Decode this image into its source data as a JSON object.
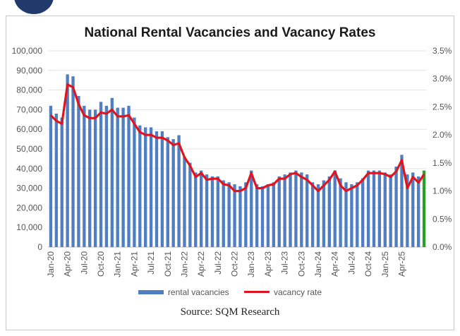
{
  "chart_data": {
    "type": "bar",
    "title": "National Rental Vacancies and Vacancy Rates",
    "source": "Source: SQM Research",
    "y_left": {
      "lim": [
        0,
        100000
      ],
      "ticks": [
        "0",
        "10,000",
        "20,000",
        "30,000",
        "40,000",
        "50,000",
        "60,000",
        "70,000",
        "80,000",
        "90,000",
        "100,000"
      ]
    },
    "y_right": {
      "lim": [
        0,
        3.5
      ],
      "ticks": [
        "0.0%",
        "0.5%",
        "1.0%",
        "1.5%",
        "2.0%",
        "2.5%",
        "3.0%",
        "3.5%"
      ]
    },
    "x_tick_labels": [
      "Jan-20",
      "Apr-20",
      "Jul-20",
      "Oct-20",
      "Jan-21",
      "Apr-21",
      "Jul-21",
      "Oct-21",
      "Jan-22",
      "Apr-22",
      "Jul-22",
      "Oct-22",
      "Jan-23",
      "Apr-23",
      "Jul-23",
      "Oct-23",
      "Jan-24",
      "Apr-24",
      "Jul-24",
      "Oct-24",
      "Jan-25",
      "Apr-25"
    ],
    "legend": [
      "rental vacancies",
      "vacancy rate"
    ],
    "grid": true,
    "colors": {
      "bars": "#4f7fc2",
      "line": "#e0141e",
      "last_bar": "#2aa02a"
    },
    "series": [
      {
        "name": "rental vacancies",
        "axis": "left",
        "values": [
          72000,
          68000,
          66000,
          88000,
          87000,
          77000,
          72000,
          70000,
          70000,
          74000,
          72000,
          76000,
          71000,
          71000,
          72000,
          66000,
          62000,
          61000,
          61000,
          59000,
          59000,
          56000,
          55000,
          57000,
          46000,
          43000,
          38000,
          39000,
          37000,
          36000,
          36000,
          34000,
          33000,
          32000,
          31000,
          33000,
          39000,
          32000,
          31000,
          32000,
          33000,
          36000,
          37000,
          38000,
          39000,
          38000,
          37000,
          33000,
          32000,
          34000,
          36000,
          39000,
          35000,
          33000,
          32000,
          33000,
          35000,
          39000,
          39000,
          39000,
          38000,
          37000,
          41000,
          47000,
          37000,
          38000,
          36000,
          39000
        ]
      },
      {
        "name": "vacancy rate",
        "axis": "right",
        "values": [
          2.35,
          2.25,
          2.2,
          2.9,
          2.85,
          2.55,
          2.35,
          2.3,
          2.3,
          2.4,
          2.38,
          2.45,
          2.33,
          2.33,
          2.35,
          2.2,
          2.05,
          2.0,
          2.0,
          1.95,
          1.95,
          1.9,
          1.82,
          1.85,
          1.6,
          1.45,
          1.25,
          1.32,
          1.2,
          1.22,
          1.22,
          1.12,
          1.1,
          1.0,
          1.0,
          1.05,
          1.32,
          1.05,
          1.05,
          1.1,
          1.12,
          1.22,
          1.22,
          1.3,
          1.32,
          1.25,
          1.2,
          1.1,
          1.0,
          1.1,
          1.2,
          1.35,
          1.1,
          1.0,
          1.05,
          1.1,
          1.2,
          1.32,
          1.32,
          1.32,
          1.3,
          1.25,
          1.35,
          1.55,
          1.05,
          1.25,
          1.15,
          1.3
        ]
      }
    ]
  }
}
